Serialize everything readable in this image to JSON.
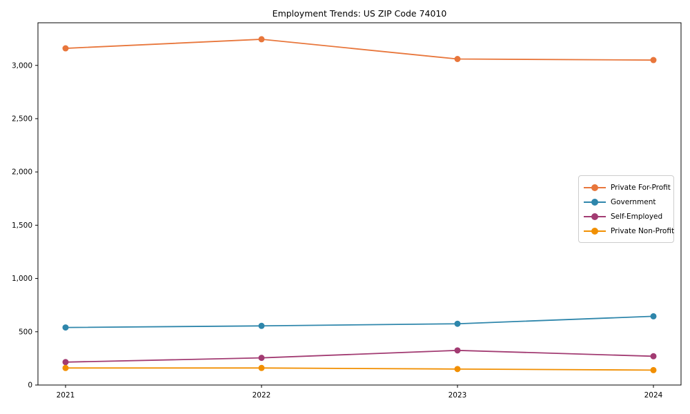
{
  "chart_data": {
    "type": "line",
    "title": "Employment Trends: US ZIP Code 74010",
    "xlabel": "",
    "ylabel": "",
    "x": [
      "2021",
      "2022",
      "2023",
      "2024"
    ],
    "series": [
      {
        "name": "Private For-Profit",
        "color": "#E8763B",
        "values": [
          3160,
          3245,
          3060,
          3050
        ]
      },
      {
        "name": "Government",
        "color": "#2E86AB",
        "values": [
          540,
          555,
          575,
          645
        ]
      },
      {
        "name": "Self-Employed",
        "color": "#A23B72",
        "values": [
          215,
          255,
          325,
          270
        ]
      },
      {
        "name": "Private Non-Profit",
        "color": "#F18F01",
        "values": [
          160,
          160,
          150,
          140
        ]
      }
    ],
    "ylim": [
      0,
      3400
    ],
    "yticks": [
      0,
      500,
      1000,
      1500,
      2000,
      2500,
      3000
    ],
    "ytick_labels": [
      "0",
      "500",
      "1,000",
      "1,500",
      "2,000",
      "2,500",
      "3,000"
    ],
    "grid": false,
    "legend_position": "center right",
    "marker": "circle",
    "axis_color": "#000000"
  }
}
